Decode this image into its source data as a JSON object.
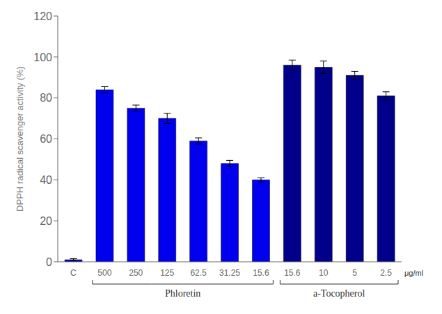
{
  "chart_data": {
    "type": "bar",
    "categories": [
      "C",
      "500",
      "250",
      "125",
      "62.5",
      "31.25",
      "15.6",
      "15.6",
      "10",
      "5",
      "2.5"
    ],
    "values": [
      1,
      84,
      75,
      70,
      59,
      48,
      40,
      96,
      95,
      91,
      81
    ],
    "errors": [
      0.5,
      1.5,
      1.5,
      2.5,
      1.5,
      1.5,
      1.0,
      2.5,
      3.0,
      2.0,
      2.0
    ],
    "colors": [
      "#0000EE",
      "#0000EE",
      "#0000EE",
      "#0000EE",
      "#0000EE",
      "#0000EE",
      "#0000EE",
      "#00008B",
      "#00008B",
      "#00008B",
      "#00008B"
    ],
    "ylabel": "DPPH radical scavenger activity (%)",
    "ylim": [
      0,
      120
    ],
    "yticks": [
      0,
      20,
      40,
      60,
      80,
      100,
      120
    ],
    "grid": false,
    "groups": [
      {
        "label": "Phloretin",
        "indices": [
          1,
          2,
          3,
          4,
          5,
          6
        ]
      },
      {
        "label": "a-Tocopherol",
        "indices": [
          7,
          8,
          9,
          10
        ]
      }
    ],
    "annotations": [
      "μg/ml"
    ]
  }
}
